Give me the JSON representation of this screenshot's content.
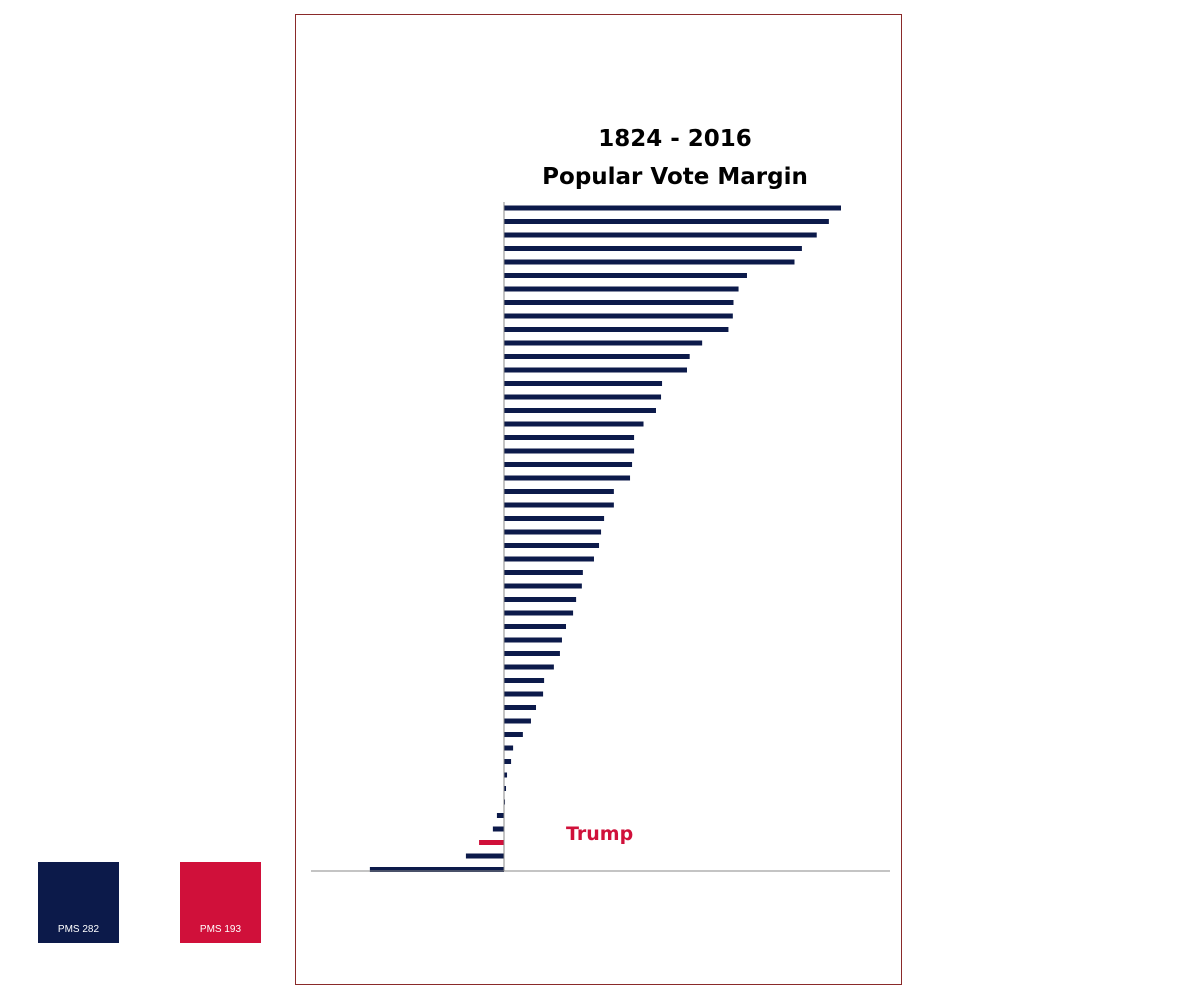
{
  "colors": {
    "navy": "#0c1a4a",
    "red": "#d0103a",
    "axis": "#888888"
  },
  "title_lines": [
    "1824 - 2016",
    "Popular Vote Margin"
  ],
  "annotation": "Trump",
  "swatches": [
    {
      "label": "PMS 282",
      "color": "#0c1a4a"
    },
    {
      "label": "PMS 193",
      "color": "#d0103a"
    }
  ],
  "chart_data": {
    "type": "bar",
    "orientation": "horizontal",
    "title": "1824 - 2016 Popular Vote Margin",
    "xlabel": "",
    "ylabel": "",
    "grid": false,
    "legend": "none",
    "highlight_index": 47,
    "highlight_label": "Trump",
    "values": [
      100,
      96.4,
      92.8,
      88.4,
      86.2,
      72.1,
      69.6,
      68.1,
      67.9,
      66.6,
      58.8,
      55.1,
      54.3,
      46.9,
      46.6,
      45.1,
      41.4,
      38.6,
      38.6,
      38.0,
      37.4,
      32.6,
      32.6,
      29.7,
      28.8,
      28.2,
      26.7,
      23.4,
      23.1,
      21.4,
      20.5,
      18.4,
      17.2,
      16.6,
      14.8,
      11.9,
      11.6,
      9.5,
      8.0,
      5.6,
      2.7,
      2.1,
      0.9,
      0.6,
      0.3,
      -2.1,
      -3.3,
      -7.4,
      -11.3,
      -39.8
    ]
  }
}
